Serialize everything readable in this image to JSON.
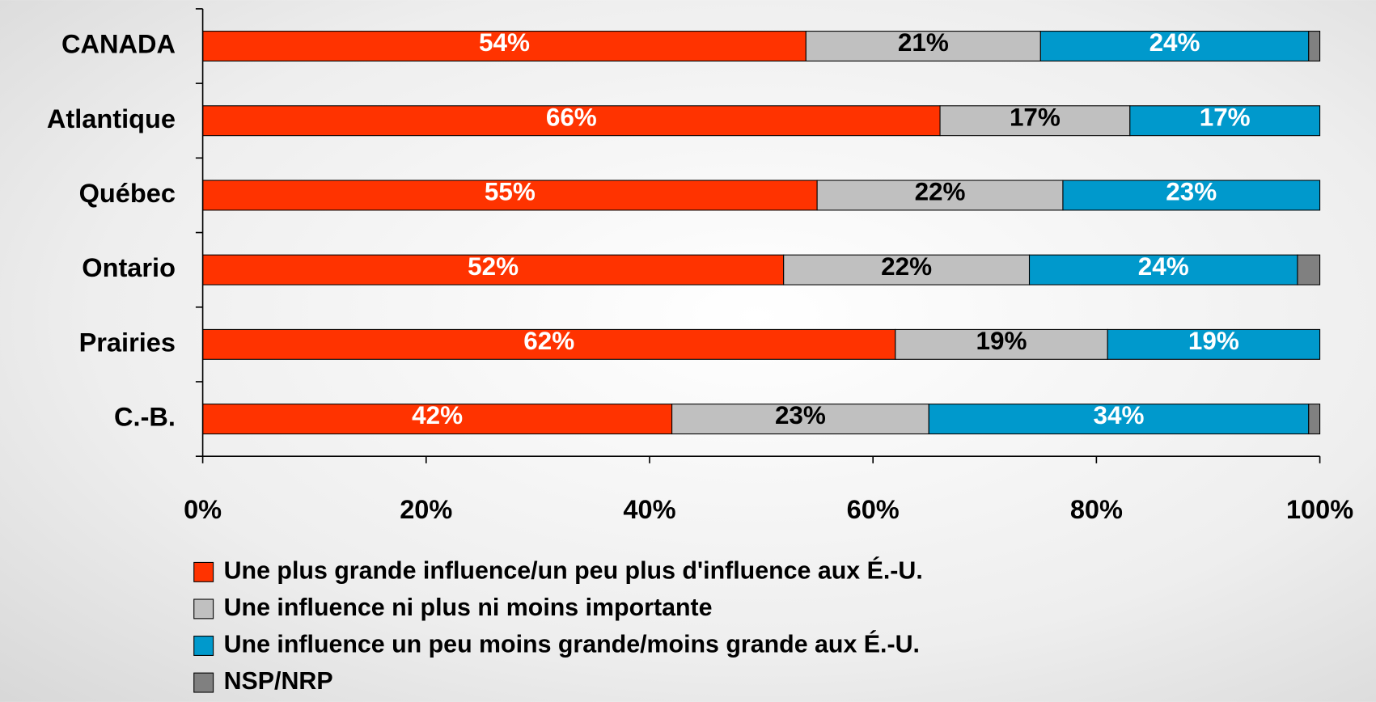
{
  "chart_data": {
    "type": "stacked-bar-horizontal",
    "categories": [
      "CANADA",
      "Atlantique",
      "Québec",
      "Ontario",
      "Prairies",
      "C.-B."
    ],
    "series": [
      {
        "name": "Une plus grande influence/un peu plus d'influence aux É.-U.",
        "color": "#ff3300",
        "label_color": "#ffffff",
        "values": [
          54,
          66,
          55,
          52,
          62,
          42
        ],
        "value_labels": [
          "54%",
          "66%",
          "55%",
          "52%",
          "62%",
          "42%"
        ]
      },
      {
        "name": "Une influence ni plus ni moins importante",
        "color": "#c0c0c0",
        "label_color": "#000000",
        "values": [
          21,
          17,
          22,
          22,
          19,
          23
        ],
        "value_labels": [
          "21%",
          "17%",
          "22%",
          "22%",
          "19%",
          "23%"
        ]
      },
      {
        "name": "Une influence un peu moins grande/moins grande aux É.-U.",
        "color": "#0099cc",
        "label_color": "#ffffff",
        "values": [
          24,
          17,
          23,
          24,
          19,
          34
        ],
        "value_labels": [
          "24%",
          "17%",
          "23%",
          "24%",
          "19%",
          "34%"
        ]
      },
      {
        "name": "NSP/NRP",
        "color": "#808080",
        "values": [
          1,
          0,
          0,
          2,
          0,
          1
        ]
      }
    ],
    "xlim": [
      0,
      100
    ],
    "xticks": [
      {
        "value": 0,
        "label": "0%"
      },
      {
        "value": 20,
        "label": "20%"
      },
      {
        "value": 40,
        "label": "40%"
      },
      {
        "value": 60,
        "label": "60%"
      },
      {
        "value": 80,
        "label": "80%"
      },
      {
        "value": 100,
        "label": "100%"
      }
    ],
    "legend": "bottom"
  }
}
